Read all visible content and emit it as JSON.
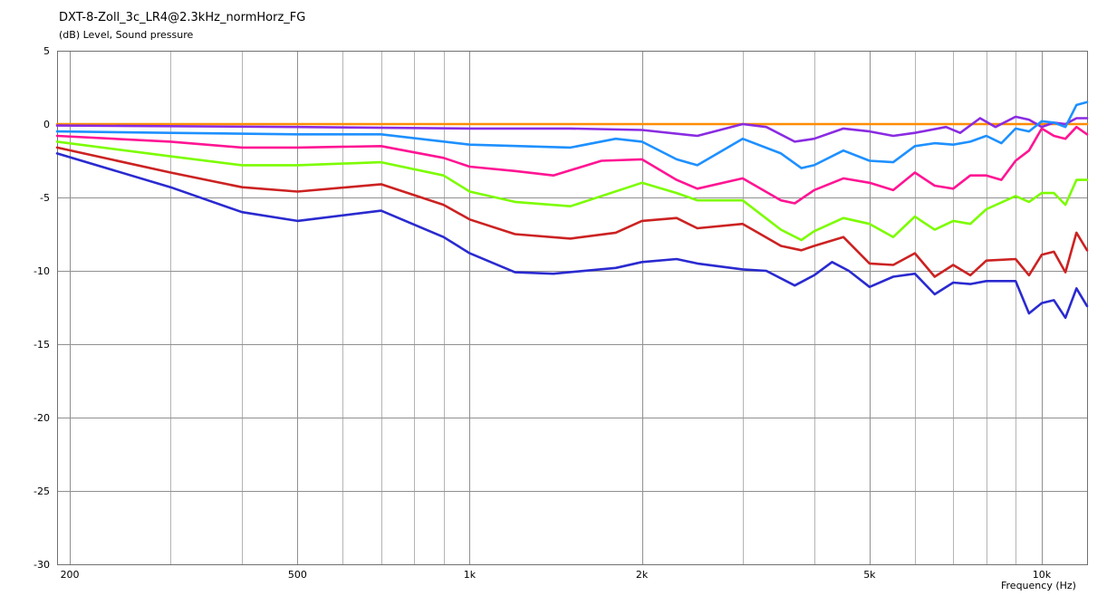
{
  "chart_data": {
    "type": "line",
    "title": "DXT-8-Zoll_3c_LR4@2.3kHz_normHorz_FG",
    "ylabel": "(dB)  Level, Sound pressure",
    "xlabel": "Frequency  (Hz)",
    "x_scale": "log",
    "xlim": [
      190,
      12000
    ],
    "ylim": [
      -30,
      5
    ],
    "grid": true,
    "x_ticks": [
      {
        "value": 200,
        "label": "200"
      },
      {
        "value": 500,
        "label": "500"
      },
      {
        "value": 1000,
        "label": "1k"
      },
      {
        "value": 2000,
        "label": "2k"
      },
      {
        "value": 5000,
        "label": "5k"
      },
      {
        "value": 10000,
        "label": "10k"
      }
    ],
    "y_ticks": [
      5,
      0,
      -5,
      -10,
      -15,
      -20,
      -25,
      -30
    ],
    "series": [
      {
        "color": "#ff8c00",
        "points": [
          [
            190,
            0
          ],
          [
            12000,
            0
          ]
        ]
      },
      {
        "color": "#8a2be2",
        "points": [
          [
            190,
            -0.1
          ],
          [
            500,
            -0.2
          ],
          [
            1000,
            -0.3
          ],
          [
            1500,
            -0.3
          ],
          [
            2000,
            -0.4
          ],
          [
            2500,
            -0.8
          ],
          [
            3000,
            0.0
          ],
          [
            3300,
            -0.2
          ],
          [
            3700,
            -1.2
          ],
          [
            4000,
            -1.0
          ],
          [
            4500,
            -0.3
          ],
          [
            5000,
            -0.5
          ],
          [
            5500,
            -0.8
          ],
          [
            6000,
            -0.6
          ],
          [
            6800,
            -0.2
          ],
          [
            7200,
            -0.6
          ],
          [
            7800,
            0.4
          ],
          [
            8300,
            -0.2
          ],
          [
            9000,
            0.5
          ],
          [
            9500,
            0.3
          ],
          [
            10000,
            -0.2
          ],
          [
            10500,
            0.1
          ],
          [
            11000,
            0.0
          ],
          [
            11500,
            0.4
          ],
          [
            12000,
            0.4
          ]
        ]
      },
      {
        "color": "#1e90ff",
        "points": [
          [
            190,
            -0.5
          ],
          [
            300,
            -0.6
          ],
          [
            500,
            -0.7
          ],
          [
            700,
            -0.7
          ],
          [
            1000,
            -1.4
          ],
          [
            1500,
            -1.6
          ],
          [
            1800,
            -1.0
          ],
          [
            2000,
            -1.2
          ],
          [
            2300,
            -2.4
          ],
          [
            2500,
            -2.8
          ],
          [
            3000,
            -1.0
          ],
          [
            3500,
            -2.0
          ],
          [
            3800,
            -3.0
          ],
          [
            4000,
            -2.8
          ],
          [
            4500,
            -1.8
          ],
          [
            5000,
            -2.5
          ],
          [
            5500,
            -2.6
          ],
          [
            6000,
            -1.5
          ],
          [
            6500,
            -1.3
          ],
          [
            7000,
            -1.4
          ],
          [
            7500,
            -1.2
          ],
          [
            8000,
            -0.8
          ],
          [
            8500,
            -1.3
          ],
          [
            9000,
            -0.3
          ],
          [
            9500,
            -0.5
          ],
          [
            10000,
            0.2
          ],
          [
            10500,
            0.1
          ],
          [
            11000,
            -0.2
          ],
          [
            11500,
            1.3
          ],
          [
            12000,
            1.5
          ]
        ]
      },
      {
        "color": "#ff1493",
        "points": [
          [
            190,
            -0.8
          ],
          [
            300,
            -1.2
          ],
          [
            400,
            -1.6
          ],
          [
            500,
            -1.6
          ],
          [
            700,
            -1.5
          ],
          [
            900,
            -2.3
          ],
          [
            1000,
            -2.9
          ],
          [
            1200,
            -3.2
          ],
          [
            1400,
            -3.5
          ],
          [
            1700,
            -2.5
          ],
          [
            2000,
            -2.4
          ],
          [
            2300,
            -3.8
          ],
          [
            2500,
            -4.4
          ],
          [
            3000,
            -3.7
          ],
          [
            3500,
            -5.2
          ],
          [
            3700,
            -5.4
          ],
          [
            4000,
            -4.5
          ],
          [
            4500,
            -3.7
          ],
          [
            5000,
            -4.0
          ],
          [
            5500,
            -4.5
          ],
          [
            6000,
            -3.3
          ],
          [
            6500,
            -4.2
          ],
          [
            7000,
            -4.4
          ],
          [
            7500,
            -3.5
          ],
          [
            8000,
            -3.5
          ],
          [
            8500,
            -3.8
          ],
          [
            9000,
            -2.5
          ],
          [
            9500,
            -1.8
          ],
          [
            10000,
            -0.3
          ],
          [
            10500,
            -0.8
          ],
          [
            11000,
            -1.0
          ],
          [
            11500,
            -0.2
          ],
          [
            12000,
            -0.7
          ]
        ]
      },
      {
        "color": "#7cfc00",
        "points": [
          [
            190,
            -1.2
          ],
          [
            300,
            -2.2
          ],
          [
            400,
            -2.8
          ],
          [
            500,
            -2.8
          ],
          [
            700,
            -2.6
          ],
          [
            900,
            -3.5
          ],
          [
            1000,
            -4.6
          ],
          [
            1200,
            -5.3
          ],
          [
            1500,
            -5.6
          ],
          [
            2000,
            -4.0
          ],
          [
            2300,
            -4.7
          ],
          [
            2500,
            -5.2
          ],
          [
            3000,
            -5.2
          ],
          [
            3500,
            -7.2
          ],
          [
            3800,
            -7.9
          ],
          [
            4000,
            -7.3
          ],
          [
            4500,
            -6.4
          ],
          [
            5000,
            -6.8
          ],
          [
            5500,
            -7.7
          ],
          [
            6000,
            -6.3
          ],
          [
            6500,
            -7.2
          ],
          [
            7000,
            -6.6
          ],
          [
            7500,
            -6.8
          ],
          [
            8000,
            -5.8
          ],
          [
            9000,
            -4.9
          ],
          [
            9500,
            -5.3
          ],
          [
            10000,
            -4.7
          ],
          [
            10500,
            -4.7
          ],
          [
            11000,
            -5.5
          ],
          [
            11500,
            -3.8
          ],
          [
            12000,
            -3.8
          ]
        ]
      },
      {
        "color": "#cc2222",
        "points": [
          [
            190,
            -1.6
          ],
          [
            300,
            -3.3
          ],
          [
            400,
            -4.3
          ],
          [
            500,
            -4.6
          ],
          [
            700,
            -4.1
          ],
          [
            900,
            -5.5
          ],
          [
            1000,
            -6.5
          ],
          [
            1200,
            -7.5
          ],
          [
            1500,
            -7.8
          ],
          [
            1800,
            -7.4
          ],
          [
            2000,
            -6.6
          ],
          [
            2300,
            -6.4
          ],
          [
            2500,
            -7.1
          ],
          [
            3000,
            -6.8
          ],
          [
            3500,
            -8.3
          ],
          [
            3800,
            -8.6
          ],
          [
            4000,
            -8.3
          ],
          [
            4500,
            -7.7
          ],
          [
            5000,
            -9.5
          ],
          [
            5500,
            -9.6
          ],
          [
            6000,
            -8.8
          ],
          [
            6500,
            -10.4
          ],
          [
            7000,
            -9.6
          ],
          [
            7500,
            -10.3
          ],
          [
            8000,
            -9.3
          ],
          [
            9000,
            -9.2
          ],
          [
            9500,
            -10.3
          ],
          [
            10000,
            -8.9
          ],
          [
            10500,
            -8.7
          ],
          [
            11000,
            -10.1
          ],
          [
            11500,
            -7.4
          ],
          [
            12000,
            -8.6
          ]
        ]
      },
      {
        "color": "#2a2ad0",
        "points": [
          [
            190,
            -2.0
          ],
          [
            300,
            -4.3
          ],
          [
            400,
            -6.0
          ],
          [
            500,
            -6.6
          ],
          [
            700,
            -5.9
          ],
          [
            900,
            -7.7
          ],
          [
            1000,
            -8.8
          ],
          [
            1200,
            -10.1
          ],
          [
            1400,
            -10.2
          ],
          [
            1800,
            -9.8
          ],
          [
            2000,
            -9.4
          ],
          [
            2300,
            -9.2
          ],
          [
            2500,
            -9.5
          ],
          [
            3000,
            -9.9
          ],
          [
            3300,
            -10.0
          ],
          [
            3700,
            -11.0
          ],
          [
            4000,
            -10.3
          ],
          [
            4300,
            -9.4
          ],
          [
            4600,
            -10.0
          ],
          [
            5000,
            -11.1
          ],
          [
            5500,
            -10.4
          ],
          [
            6000,
            -10.2
          ],
          [
            6500,
            -11.6
          ],
          [
            7000,
            -10.8
          ],
          [
            7500,
            -10.9
          ],
          [
            8000,
            -10.7
          ],
          [
            9000,
            -10.7
          ],
          [
            9500,
            -12.9
          ],
          [
            10000,
            -12.2
          ],
          [
            10500,
            -12.0
          ],
          [
            11000,
            -13.2
          ],
          [
            11500,
            -11.2
          ],
          [
            12000,
            -12.4
          ]
        ]
      }
    ]
  }
}
